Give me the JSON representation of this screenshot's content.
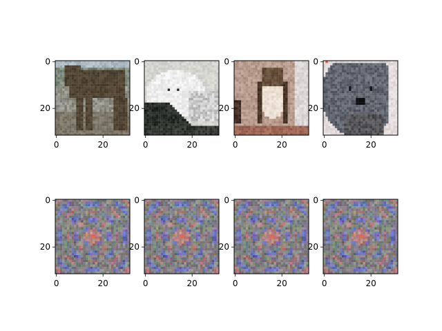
{
  "chart_data": {
    "type": "image-grid",
    "rows": 2,
    "cols": 4,
    "image_size": [
      32,
      32
    ],
    "xticks": [
      0,
      20
    ],
    "yticks": [
      0,
      20
    ],
    "panels": [
      {
        "row": 0,
        "col": 0,
        "content": "horse"
      },
      {
        "row": 0,
        "col": 1,
        "content": "white-dog"
      },
      {
        "row": 0,
        "col": 2,
        "content": "bird"
      },
      {
        "row": 0,
        "col": 3,
        "content": "grey-dog"
      },
      {
        "row": 1,
        "col": 0,
        "content": "noise-pattern"
      },
      {
        "row": 1,
        "col": 1,
        "content": "noise-pattern"
      },
      {
        "row": 1,
        "col": 2,
        "content": "noise-pattern"
      },
      {
        "row": 1,
        "col": 3,
        "content": "noise-pattern"
      }
    ]
  }
}
